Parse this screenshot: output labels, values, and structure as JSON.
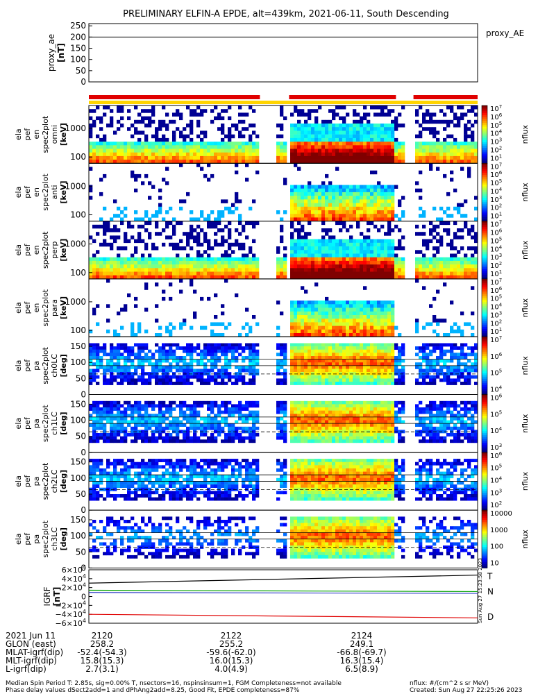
{
  "chart_data": {
    "type": "heatmap",
    "title": "PRELIMINARY ELFIN-A EPDE, alt=439km, 2021-06-11, South Descending",
    "colors": {
      "axes": "#000000",
      "bar_red": "#e00000",
      "bar_yellow": "#ffd400",
      "line_T": "#000000",
      "line_N": "#00a000",
      "line_D": "#e00000",
      "line_blue": "#1020c0"
    },
    "x_ticks": [
      "2120",
      "2122",
      "2124"
    ],
    "gaps": [
      [
        0.44,
        0.48
      ],
      [
        0.505,
        0.515
      ],
      [
        0.81,
        0.84
      ]
    ],
    "top_panel": {
      "ylabel": "proxy_ae\n[nT]",
      "yticks": [
        "250",
        "200",
        "150",
        "100",
        "50",
        "0"
      ],
      "ylim": [
        0,
        260
      ],
      "series": [
        {
          "name": "proxy_AE",
          "values": [
            200,
            200
          ]
        }
      ],
      "legend": "proxy_AE"
    },
    "spectro_panels": [
      {
        "ylabel": [
          "ela",
          "pef",
          "en",
          "spec2plot",
          "omni",
          "[keV]"
        ],
        "yticks": [
          "1000",
          "100"
        ],
        "cbar": [
          "10^7",
          "10^6",
          "10^5",
          "10^4",
          "10^3",
          "10^2",
          "10^1"
        ],
        "clabel": "nflux",
        "kind": "omni"
      },
      {
        "ylabel": [
          "ela",
          "pef",
          "en",
          "spec2plot",
          "anti",
          "[keV]"
        ],
        "yticks": [
          "1000",
          "100"
        ],
        "cbar": [
          "10^7",
          "10^6",
          "10^5",
          "10^4",
          "10^3",
          "10^2",
          "10^1"
        ],
        "clabel": "nflux",
        "kind": "anti"
      },
      {
        "ylabel": [
          "ela",
          "pef",
          "en",
          "spec2plot",
          "perp",
          "[keV]"
        ],
        "yticks": [
          "1000",
          "100"
        ],
        "cbar": [
          "10^7",
          "10^6",
          "10^5",
          "10^4",
          "10^3",
          "10^2",
          "10^1"
        ],
        "clabel": "nflux",
        "kind": "omni"
      },
      {
        "ylabel": [
          "ela",
          "pef",
          "en",
          "spec2plot",
          "para",
          "[keV]"
        ],
        "yticks": [
          "1000",
          "100"
        ],
        "cbar": [
          "10^7",
          "10^6",
          "10^5",
          "10^4",
          "10^3",
          "10^2",
          "10^1"
        ],
        "clabel": "nflux",
        "kind": "anti"
      },
      {
        "ylabel": [
          "ela",
          "pef",
          "pa",
          "spec2plot",
          "ch0LC",
          "[deg]"
        ],
        "yticks": [
          "150",
          "100",
          "50",
          "0"
        ],
        "cbar": [
          "10^7",
          "10^6",
          "10^5",
          "10^4"
        ],
        "clabel": "nflux",
        "kind": "pa"
      },
      {
        "ylabel": [
          "ela",
          "pef",
          "pa",
          "spec2plot",
          "ch1LC",
          "[deg]"
        ],
        "yticks": [
          "150",
          "100",
          "50",
          "0"
        ],
        "cbar": [
          "10^6",
          "10^5",
          "10^4",
          "10^3"
        ],
        "clabel": "nflux",
        "kind": "pa"
      },
      {
        "ylabel": [
          "ela",
          "pef",
          "pa",
          "spec2plot",
          "ch2LC",
          "[deg]"
        ],
        "yticks": [
          "150",
          "100",
          "50",
          "0"
        ],
        "cbar": [
          "10^6",
          "10^5",
          "10^4",
          "10^3",
          "10^2"
        ],
        "clabel": "nflux",
        "kind": "pa"
      },
      {
        "ylabel": [
          "ela",
          "pef",
          "pa",
          "spec2plot",
          "ch3LC",
          "[deg]"
        ],
        "yticks": [
          "150",
          "100",
          "50",
          "0"
        ],
        "cbar": [
          "10000",
          "1000",
          "100",
          "10"
        ],
        "clabel": "nflux",
        "kind": "pa3"
      }
    ],
    "bottom_panel": {
      "ylabel": "IGRF\n[nT]",
      "yticks": [
        "6×10^4",
        "4×10^4",
        "2×10^4",
        "0",
        "−2×10^4",
        "−4×10^4",
        "−6×10^4"
      ],
      "ylim": [
        -60000,
        60000
      ],
      "series": [
        {
          "name": "T",
          "values": [
            30000,
            48000
          ]
        },
        {
          "name": "N",
          "values": [
            14000,
            11000
          ]
        },
        {
          "name": "D",
          "values": [
            -40000,
            -48000
          ]
        }
      ],
      "legend": [
        "T",
        "N",
        "D"
      ],
      "side_note": "Sun Aug 27 15:23:58 2023"
    }
  },
  "footer": {
    "rows": [
      [
        "2021 Jun 11",
        "2120",
        "2122",
        "2124"
      ],
      [
        "GLON (east)",
        "258.2",
        "255.2",
        "249.1"
      ],
      [
        "MLAT-igrf(dip)",
        "-52.4(-54.3)",
        "-59.6(-62.0)",
        "-66.8(-69.7)"
      ],
      [
        "MLT-igrf(dip)",
        "15.8(15.3)",
        "16.0(15.3)",
        "16.3(15.4)"
      ],
      [
        "L-igrf(dip)",
        "2.7(3.1)",
        "4.0(4.9)",
        "6.5(8.9)"
      ]
    ],
    "note1": "Median Spin Period T: 2.85s, sig=0.00% T, nsectors=16, nspinsinsum=1, FGM Completeness=not available",
    "note2": "Phase delay values dSect2add=1 and dPhAng2add=8.25, Good Fit, EPDE completeness=87%",
    "units": "nflux: #/(cm^2 s sr MeV)",
    "created": "Created: Sun Aug 27 22:25:26 2023"
  }
}
